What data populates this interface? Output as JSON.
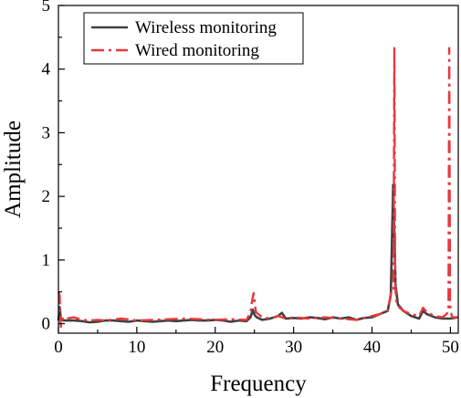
{
  "chart_data": {
    "type": "line",
    "xlabel": "Frequency",
    "ylabel": "Amplitude",
    "xlim": [
      0,
      51
    ],
    "ylim": [
      -0.15,
      5
    ],
    "xticks": [
      0,
      10,
      20,
      30,
      40,
      50
    ],
    "yticks": [
      0,
      1,
      2,
      3,
      4,
      5
    ],
    "grid": false,
    "legend": "top-left",
    "series": [
      {
        "name": "Wireless monitoring",
        "color": "#404040",
        "style": "solid",
        "x": [
          0,
          0.15,
          0.3,
          0.6,
          1,
          2,
          3,
          4,
          5,
          6,
          7,
          8,
          9,
          10,
          11,
          12,
          13,
          14,
          15,
          16,
          17,
          18,
          19,
          20,
          21,
          22,
          23,
          24,
          24.5,
          24.8,
          25,
          25.3,
          26,
          27,
          28,
          28.5,
          29,
          30,
          31,
          32,
          33,
          34,
          35,
          36,
          37,
          38,
          39,
          40,
          41,
          42,
          42.4,
          42.7,
          43,
          43.3,
          44,
          45,
          46,
          46.5,
          47,
          48,
          49,
          50,
          51
        ],
        "y": [
          0.05,
          0.26,
          0.08,
          0.05,
          0.05,
          0.05,
          0.04,
          0.02,
          0.03,
          0.05,
          0.05,
          0.04,
          0.03,
          0.05,
          0.04,
          0.03,
          0.04,
          0.05,
          0.04,
          0.05,
          0.06,
          0.05,
          0.05,
          0.06,
          0.05,
          0.03,
          0.05,
          0.04,
          0.1,
          0.22,
          0.14,
          0.1,
          0.06,
          0.08,
          0.12,
          0.17,
          0.08,
          0.09,
          0.08,
          0.1,
          0.09,
          0.07,
          0.1,
          0.08,
          0.1,
          0.06,
          0.09,
          0.1,
          0.15,
          0.2,
          0.45,
          2.18,
          0.6,
          0.3,
          0.2,
          0.12,
          0.08,
          0.2,
          0.15,
          0.1,
          0.08,
          0.08,
          0.1
        ]
      },
      {
        "name": "Wired monitoring",
        "color": "#e8383d",
        "style": "dashdot",
        "x": [
          0,
          0.05,
          0.15,
          0.3,
          0.6,
          1,
          2,
          3,
          4,
          5,
          6,
          8,
          10,
          12,
          14,
          16,
          18,
          20,
          22,
          24,
          24.5,
          24.7,
          24.9,
          25.2,
          26,
          27,
          28,
          29,
          30,
          32,
          34,
          36,
          38,
          40,
          41,
          42,
          42.5,
          42.75,
          42.85,
          42.95,
          43.1,
          43.5,
          44,
          45,
          46,
          46.5,
          47,
          48,
          49,
          49.5,
          49.75,
          49.85,
          49.95,
          50.2,
          51
        ],
        "y": [
          0.5,
          0.48,
          0.45,
          -0.05,
          0.1,
          0.08,
          0.1,
          0.06,
          0.05,
          0.06,
          0.05,
          0.08,
          0.05,
          0.06,
          0.07,
          0.08,
          0.07,
          0.06,
          0.07,
          0.06,
          0.18,
          0.35,
          0.48,
          0.18,
          0.1,
          0.08,
          0.12,
          0.08,
          0.1,
          0.08,
          0.1,
          0.08,
          0.06,
          0.12,
          0.15,
          0.2,
          0.55,
          0.55,
          4.33,
          0.6,
          0.35,
          0.25,
          0.2,
          0.15,
          0.12,
          0.25,
          0.18,
          0.12,
          0.1,
          0.15,
          0.2,
          4.33,
          0.3,
          0.1,
          0.1
        ]
      }
    ]
  }
}
